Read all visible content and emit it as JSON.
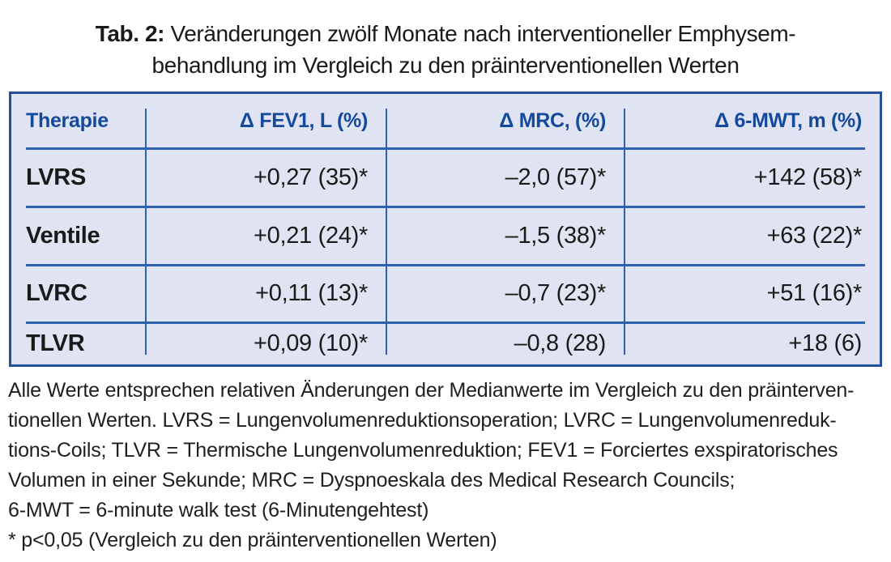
{
  "title": {
    "label": "Tab. 2:",
    "line1": "Veränderungen zwölf Monate nach interventioneller Emphysem-",
    "line2": "behandlung im Vergleich zu den präinterventionellen Werten"
  },
  "chart_data": {
    "type": "table",
    "columns": [
      "Therapie",
      "Δ FEV1, L (%)",
      "Δ MRC, (%)",
      "Δ 6-MWT, m (%)"
    ],
    "rows": [
      [
        "LVRS",
        "+0,27 (35)*",
        "–2,0 (57)*",
        "+142 (58)*"
      ],
      [
        "Ventile",
        "+0,21 (24)*",
        "–1,5 (38)*",
        "+63 (22)*"
      ],
      [
        "LVRC",
        "+0,11 (13)*",
        "–0,7 (23)*",
        "+51 (16)*"
      ],
      [
        "TLVR",
        "+0,09 (10)*",
        "–0,8 (28)",
        "+18 (6)"
      ]
    ]
  },
  "footnote": {
    "lines": [
      "Alle Werte entsprechen relativen Änderungen der Medianwerte im Vergleich zu den präinterven-",
      "tionellen Werten. LVRS = Lungenvolumenreduktionsoperation; LVRC = Lungenvolumenreduk-",
      "tions-Coils; TLVR = Thermische Lungenvolumenreduktion; FEV1 = Forciertes exspiratorisches",
      "Volumen in einer Sekunde; MRC = Dyspnoeskala des Medical Research Councils;",
      "6-MWT = 6-minute walk test (6-Minutengehtest)",
      "* p<0,05 (Vergleich zu den präinterventionellen Werten)"
    ]
  },
  "colors": {
    "table_bg": "#e0e3f2",
    "table_border": "#25519c",
    "grid_line": "#2d62ae",
    "header_text": "#15499c",
    "body_text": "#1a1a1a",
    "footnote_text": "#1f1f1f",
    "page_bg": "#ffffff"
  }
}
